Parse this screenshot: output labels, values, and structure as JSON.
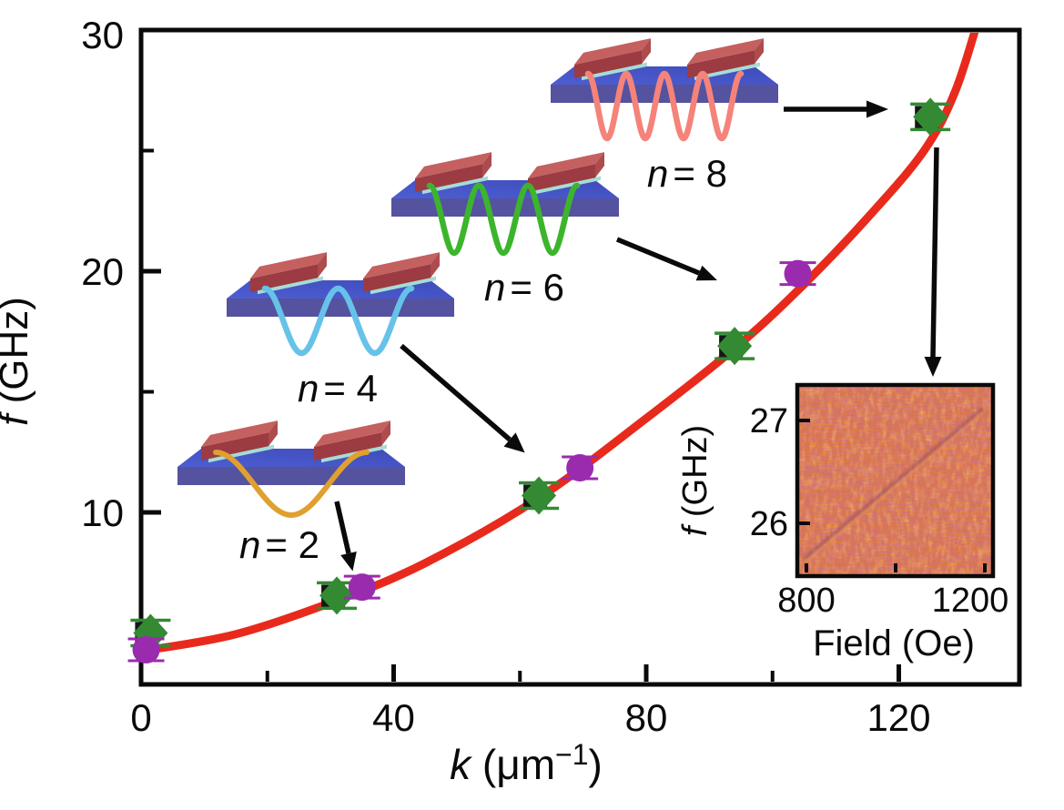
{
  "figure": {
    "background": "#ffffff",
    "type": "scientific dispersion plot with device insets"
  },
  "chart_data": {
    "type": "scatter",
    "xlabel_sym": "k",
    "xlabel_rest_open": " (μm",
    "xlabel_sup": "−1",
    "xlabel_close": ")",
    "ylabel_sym": "f",
    "ylabel_rest": " (GHz)",
    "x_tick_labels": [
      "0",
      "40",
      "80",
      "120"
    ],
    "y_tick_labels": [
      "30",
      "20",
      "10"
    ],
    "x_minor_ticks": [
      20,
      60,
      100
    ],
    "y_minor_ticks": [
      5,
      15,
      25
    ],
    "xlim": [
      0,
      139
    ],
    "ylim": [
      2.87,
      30
    ],
    "series": [
      {
        "name": "diamond-data",
        "marker": "diamond",
        "color": "#338a33",
        "points": [
          [
            1.5,
            5.0
          ],
          [
            31,
            6.55
          ],
          [
            63,
            10.7
          ],
          [
            94,
            16.9
          ],
          [
            125,
            26.4
          ]
        ]
      },
      {
        "name": "circle-data",
        "marker": "circle",
        "color": "#9a2bae",
        "points": [
          [
            0.8,
            4.3
          ],
          [
            35,
            6.9
          ],
          [
            69.5,
            11.85
          ],
          [
            104,
            19.9
          ]
        ]
      }
    ],
    "curve": {
      "name": "dispersion-fit",
      "color": "#e82a1c",
      "samples": [
        [
          0,
          4.25
        ],
        [
          15,
          4.95
        ],
        [
          31,
          6.35
        ],
        [
          45,
          7.9
        ],
        [
          63,
          10.6
        ],
        [
          80,
          13.9
        ],
        [
          94,
          16.8
        ],
        [
          104,
          19.2
        ],
        [
          115,
          22.2
        ],
        [
          124,
          25.0
        ],
        [
          129,
          27.5
        ],
        [
          133,
          30.8
        ]
      ]
    },
    "modes": [
      {
        "n": 2,
        "label_sym": "n",
        "label_rest": "= 2",
        "wave_color": "#dfa030"
      },
      {
        "n": 4,
        "label_sym": "n",
        "label_rest": "= 4",
        "wave_color": "#66c2e8"
      },
      {
        "n": 6,
        "label_sym": "n",
        "label_rest": "= 6",
        "wave_color": "#3cb52d"
      },
      {
        "n": 8,
        "label_sym": "n",
        "label_rest": "= 8",
        "wave_color": "#f5837a"
      }
    ]
  },
  "inset": {
    "type": "heatmap",
    "ylabel_sym": "f",
    "ylabel_rest": " (GHz)",
    "xlabel": "Field (Oe)",
    "x_tick_labels": [
      "800",
      "1200"
    ],
    "y_tick_labels": [
      "27",
      "26"
    ],
    "x_range": [
      800,
      1200
    ],
    "y_range_ghz": [
      25.5,
      27.3
    ],
    "description": "noisy orange spectral map with faint diagonal resonance line rising from lower-left to upper-right",
    "base_color": "#e07a30"
  }
}
